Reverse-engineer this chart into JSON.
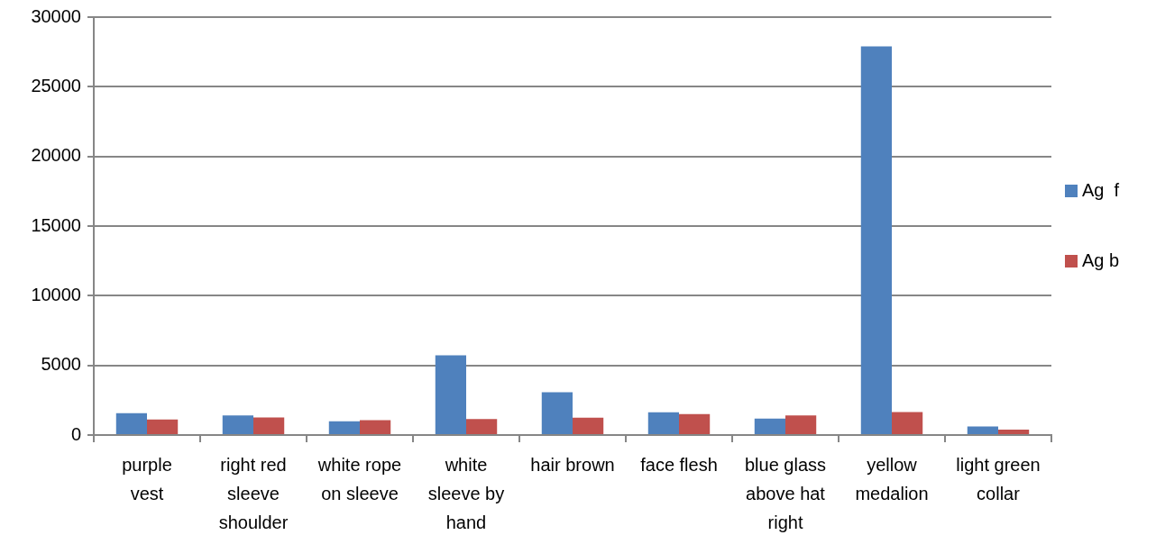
{
  "chart_data": {
    "type": "bar",
    "categories": [
      "purple vest",
      "right red sleeve shoulder",
      "white rope on sleeve",
      "white sleeve by hand",
      "hair brown",
      "face flesh",
      "blue glass above hat right",
      "yellow medalion",
      "light green collar"
    ],
    "series": [
      {
        "name": "Ag  f",
        "color": "#4f81bd",
        "values": [
          1570,
          1410,
          980,
          5720,
          3070,
          1630,
          1180,
          27900,
          610
        ]
      },
      {
        "name": "Ag b",
        "color": "#c0504d",
        "values": [
          1110,
          1260,
          1070,
          1150,
          1240,
          1500,
          1410,
          1650,
          390
        ]
      }
    ],
    "ylim": [
      0,
      30000
    ],
    "yticks": [
      0,
      5000,
      10000,
      15000,
      20000,
      25000,
      30000
    ],
    "grid": "y",
    "legend": "right"
  }
}
